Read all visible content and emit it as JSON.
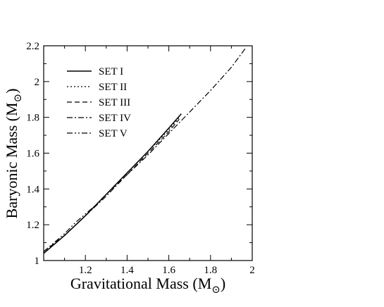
{
  "chart_data": {
    "type": "line",
    "title": "",
    "xlabel": "Gravitational Mass (M",
    "xlabel_sub": "⊙",
    "xlabel_close": ")",
    "ylabel": "Baryonic Mass (M",
    "ylabel_sub": "⊙",
    "ylabel_close": ")",
    "xlim": [
      1.0,
      2.0
    ],
    "ylim": [
      1.0,
      2.2
    ],
    "xticks": [
      1.2,
      1.4,
      1.6,
      1.8,
      2.0
    ],
    "xtick_labels": [
      "1.2",
      "1.4",
      "1.6",
      "1.8",
      "2"
    ],
    "yticks": [
      1.0,
      1.2,
      1.4,
      1.6,
      1.8,
      2.0,
      2.2
    ],
    "ytick_labels": [
      "1",
      "1.2",
      "1.4",
      "1.6",
      "1.8",
      "2",
      "2.2"
    ],
    "grid": false,
    "legend_position": "top-left",
    "series": [
      {
        "name": "SET I",
        "style": "solid",
        "x": [
          1.0,
          1.1,
          1.2,
          1.3,
          1.4,
          1.5,
          1.6,
          1.66
        ],
        "y": [
          1.04,
          1.14,
          1.25,
          1.37,
          1.49,
          1.61,
          1.74,
          1.82
        ]
      },
      {
        "name": "SET II",
        "style": "dotted",
        "x": [
          1.0,
          1.1,
          1.2,
          1.3,
          1.4,
          1.5,
          1.6,
          1.65
        ],
        "y": [
          1.04,
          1.14,
          1.25,
          1.37,
          1.49,
          1.61,
          1.73,
          1.8
        ]
      },
      {
        "name": "SET III",
        "style": "dashed",
        "x": [
          1.0,
          1.1,
          1.2,
          1.3,
          1.4,
          1.5,
          1.6,
          1.65
        ],
        "y": [
          1.05,
          1.14,
          1.25,
          1.37,
          1.48,
          1.6,
          1.72,
          1.79
        ]
      },
      {
        "name": "SET IV",
        "style": "dashdot",
        "x": [
          1.0,
          1.1,
          1.2,
          1.3,
          1.4,
          1.5,
          1.6,
          1.7,
          1.8,
          1.9,
          1.97
        ],
        "y": [
          1.04,
          1.14,
          1.25,
          1.36,
          1.48,
          1.59,
          1.71,
          1.83,
          1.95,
          2.08,
          2.19
        ]
      },
      {
        "name": "SET V",
        "style": "dashdotdot",
        "x": [
          1.0,
          1.05,
          1.1,
          1.15,
          1.2,
          1.25
        ],
        "y": [
          1.05,
          1.1,
          1.15,
          1.21,
          1.26,
          1.31
        ]
      }
    ]
  }
}
